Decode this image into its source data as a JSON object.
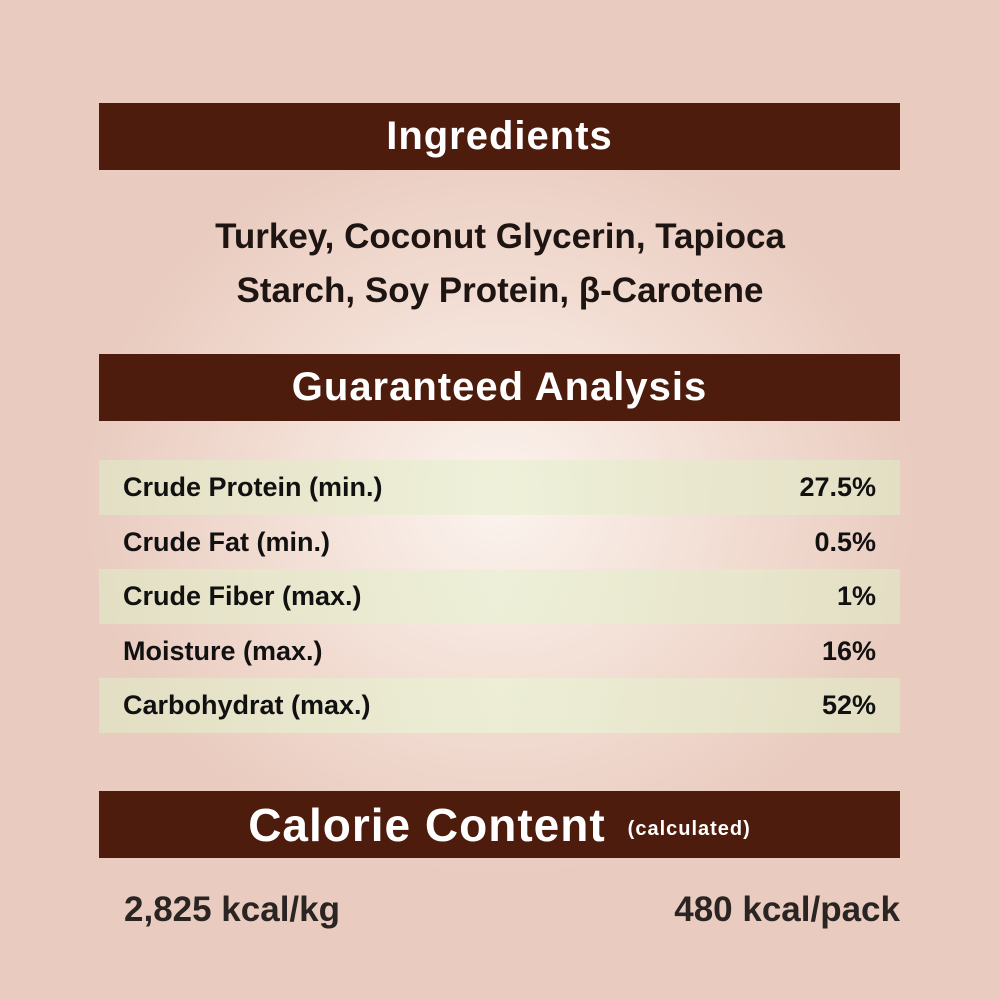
{
  "ingredients": {
    "heading": "Ingredients",
    "line1": "Turkey, Coconut Glycerin, Tapioca",
    "line2": "Starch, Soy Protein, β-Carotene"
  },
  "analysis": {
    "heading": "Guaranteed Analysis",
    "rows": [
      {
        "label": "Crude Protein (min.)",
        "value": "27.5%"
      },
      {
        "label": "Crude Fat (min.)",
        "value": "0.5%"
      },
      {
        "label": "Crude Fiber (max.)",
        "value": "1%"
      },
      {
        "label": "Moisture (max.)",
        "value": "16%"
      },
      {
        "label": "Carbohydrat (max.)",
        "value": "52%"
      }
    ]
  },
  "calorie": {
    "heading": "Calorie Content",
    "note": "(calculated)",
    "per_kg": "2,825 kcal/kg",
    "per_pack": "480 kcal/pack"
  },
  "colors": {
    "banner": "#4e1c0d",
    "background": "#ecd3c8",
    "row_band": "#e6e5cc"
  }
}
